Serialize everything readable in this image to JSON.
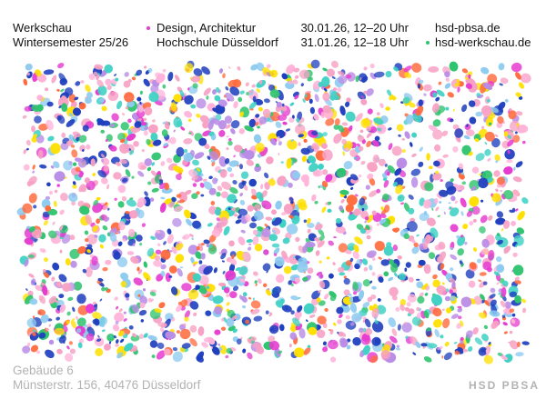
{
  "header": {
    "event": "Werkschau",
    "semester": "Wintersemester 25/26",
    "disciplines": "Design, Architektur",
    "institution": "Hochschule Düsseldorf",
    "dates": [
      "30.01.26, 12–20 Uhr",
      "31.01.26, 12–18 Uhr"
    ],
    "websites": [
      "hsd-pbsa.de",
      "hsd-werkschau.de"
    ]
  },
  "footer": {
    "building": "Gebäude 6",
    "address": "Münsterstr. 156, 40476 Düsseldorf",
    "logo": "HSD PBSA"
  }
}
